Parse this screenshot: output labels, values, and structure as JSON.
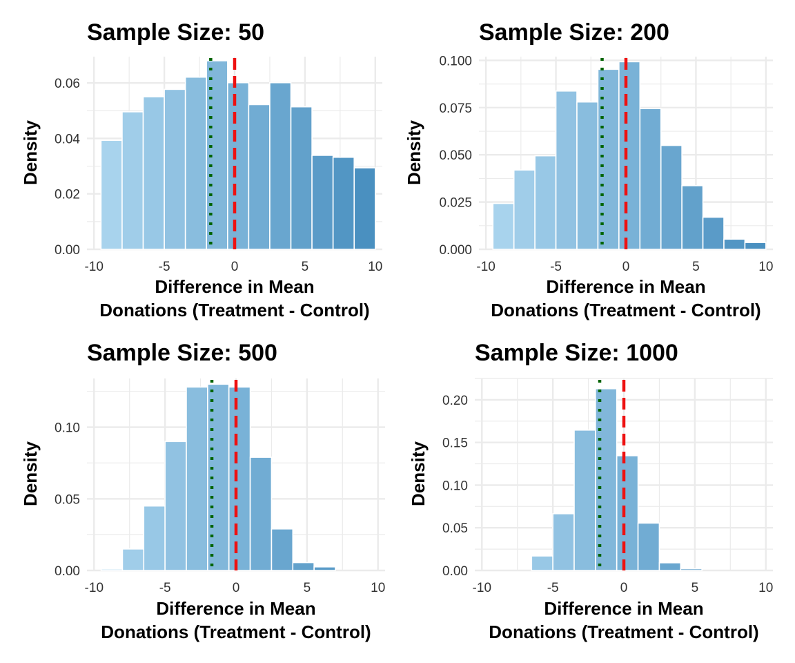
{
  "chart_data": [
    {
      "type": "bar",
      "title": "Sample Size: 50",
      "xlabel_line1": "Difference in Mean",
      "xlabel_line2": "Donations (Treatment - Control)",
      "ylabel": "Density",
      "xlim": [
        -10.5,
        10.5
      ],
      "ylim": [
        0,
        0.0695
      ],
      "xticks": [
        -10,
        -5,
        0,
        5,
        10
      ],
      "yticks": [
        0,
        0.02,
        0.04,
        0.06
      ],
      "ytick_labels": [
        "0.00",
        "0.02",
        "0.04",
        "0.06"
      ],
      "bins": [
        -9.5,
        -8,
        -6.5,
        -5,
        -3.5,
        -2,
        -0.5,
        1,
        2.5,
        4,
        5.5,
        7,
        8.5
      ],
      "values": [
        0.0393,
        0.0496,
        0.055,
        0.0577,
        0.0621,
        0.068,
        0.0601,
        0.0522,
        0.0601,
        0.0514,
        0.0339,
        0.0332,
        0.0294
      ],
      "ref_lines": [
        {
          "x": 0,
          "style": "dashed",
          "color": "#ee1111"
        },
        {
          "x": -1.7,
          "style": "dotted",
          "color": "#006400"
        }
      ]
    },
    {
      "type": "bar",
      "title": "Sample Size: 200",
      "xlabel_line1": "Difference in Mean",
      "xlabel_line2": "Donations (Treatment - Control)",
      "ylabel": "Density",
      "xlim": [
        -10.5,
        10.5
      ],
      "ylim": [
        0,
        0.102
      ],
      "xticks": [
        -10,
        -5,
        0,
        5,
        10
      ],
      "yticks": [
        0,
        0.025,
        0.05,
        0.075,
        0.1
      ],
      "ytick_labels": [
        "0.000",
        "0.025",
        "0.050",
        "0.075",
        "0.100"
      ],
      "bins": [
        -9.5,
        -8,
        -6.5,
        -5,
        -3.5,
        -2,
        -0.5,
        1,
        2.5,
        4,
        5.5,
        7,
        8.5
      ],
      "values": [
        0.0243,
        0.042,
        0.0495,
        0.0838,
        0.078,
        0.0953,
        0.0993,
        0.0745,
        0.055,
        0.0337,
        0.017,
        0.0054,
        0.0036
      ],
      "ref_lines": [
        {
          "x": 0,
          "style": "dashed",
          "color": "#ee1111"
        },
        {
          "x": -1.7,
          "style": "dotted",
          "color": "#006400"
        }
      ]
    },
    {
      "type": "bar",
      "title": "Sample Size: 500",
      "xlabel_line1": "Difference in Mean",
      "xlabel_line2": "Donations (Treatment - Control)",
      "ylabel": "Density",
      "xlim": [
        -10.5,
        10.5
      ],
      "ylim": [
        0,
        0.134
      ],
      "xticks": [
        -10,
        -5,
        0,
        5,
        10
      ],
      "yticks": [
        0,
        0.05,
        0.1
      ],
      "ytick_labels": [
        "0.00",
        "0.05",
        "0.10"
      ],
      "bins": [
        -9.5,
        -8,
        -6.5,
        -5,
        -3.5,
        -2,
        -0.5,
        1,
        2.5,
        4,
        5.5,
        7,
        8.5
      ],
      "values": [
        0.001,
        0.015,
        0.045,
        0.09,
        0.128,
        0.13,
        0.128,
        0.079,
        0.029,
        0.0055,
        0.0025,
        0,
        0
      ],
      "ref_lines": [
        {
          "x": 0,
          "style": "dashed",
          "color": "#ee1111"
        },
        {
          "x": -1.7,
          "style": "dotted",
          "color": "#006400"
        }
      ]
    },
    {
      "type": "bar",
      "title": "Sample Size: 1000",
      "xlabel_line1": "Difference in Mean",
      "xlabel_line2": "Donations (Treatment - Control)",
      "ylabel": "Density",
      "xlim": [
        -10.5,
        10.5
      ],
      "ylim": [
        0,
        0.225
      ],
      "xticks": [
        -10,
        -5,
        0,
        5,
        10
      ],
      "yticks": [
        0,
        0.05,
        0.1,
        0.15,
        0.2
      ],
      "ytick_labels": [
        "0.00",
        "0.05",
        "0.10",
        "0.15",
        "0.20"
      ],
      "bins": [
        -9.5,
        -8,
        -6.5,
        -5,
        -3.5,
        -2,
        -0.5,
        1,
        2.5,
        4,
        5.5,
        7,
        8.5
      ],
      "values": [
        0,
        0,
        0.017,
        0.0665,
        0.1645,
        0.213,
        0.1345,
        0.0555,
        0.009,
        0.002,
        0,
        0,
        0
      ],
      "ref_lines": [
        {
          "x": 0,
          "style": "dashed",
          "color": "#ee1111"
        },
        {
          "x": -1.7,
          "style": "dotted",
          "color": "#006400"
        }
      ]
    }
  ],
  "colors": {
    "bar_light": "#a8d3ed",
    "bar_dark": "#4a90c0",
    "grid": "#ebebeb",
    "zero_line": "#ee1111",
    "mean_line": "#006400"
  }
}
